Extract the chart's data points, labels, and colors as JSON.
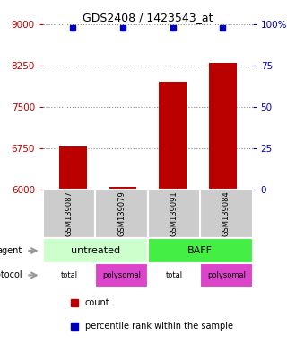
{
  "title": "GDS2408 / 1423543_at",
  "samples": [
    "GSM139087",
    "GSM139079",
    "GSM139091",
    "GSM139084"
  ],
  "counts": [
    6780,
    6050,
    7950,
    8300
  ],
  "ylim": [
    6000,
    9000
  ],
  "yticks": [
    6000,
    6750,
    7500,
    8250,
    9000
  ],
  "y2ticks": [
    0,
    25,
    50,
    75,
    100
  ],
  "y2labels": [
    "0",
    "25",
    "50",
    "75",
    "100%"
  ],
  "bar_color": "#bb0000",
  "dot_color": "#0000bb",
  "agent_spans": [
    [
      0,
      2,
      "untreated",
      "#ccffcc"
    ],
    [
      2,
      4,
      "BAFF",
      "#44ee44"
    ]
  ],
  "protocol_labels": [
    "total",
    "polysomal",
    "total",
    "polysomal"
  ],
  "protocol_colors": [
    "#ee88ee",
    "#dd44cc",
    "#ee88ee",
    "#dd44cc"
  ],
  "protocol_white": [
    true,
    false,
    true,
    false
  ],
  "grid_color": "#888888",
  "bg_color": "#ffffff",
  "sample_box_color": "#cccccc",
  "legend_red": "count",
  "legend_blue": "percentile rank within the sample"
}
